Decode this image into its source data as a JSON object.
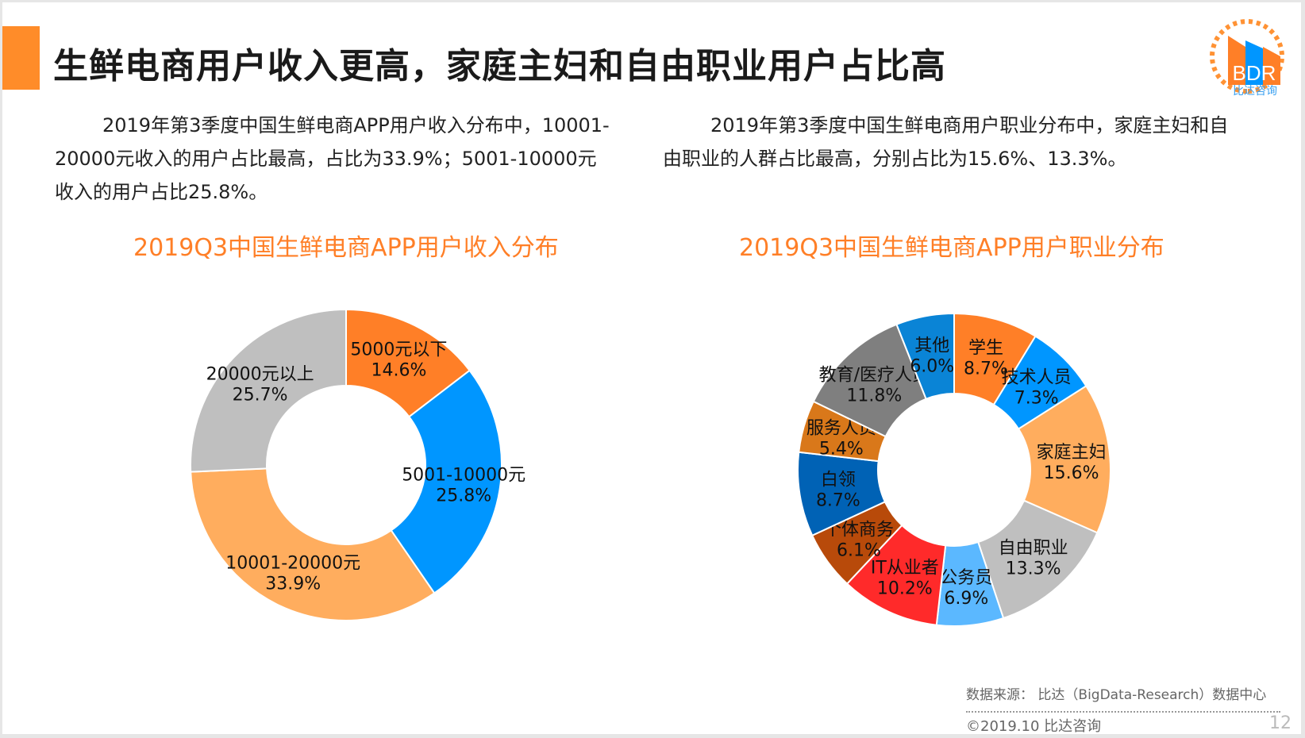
{
  "header": {
    "title": "生鲜电商用户收入更高，家庭主妇和自由职业用户占比高"
  },
  "logo": {
    "text": "BDR",
    "subtext": "比达咨询"
  },
  "descriptions": [
    "2019年第3季度中国生鲜电商APP用户收入分布中，10001-20000元收入的用户占比最高，占比为33.9%；5001-10000元收入的用户占比25.8%。",
    "2019年第3季度中国生鲜电商用户职业分布中，家庭主妇和自由职业的人群占比最高，分别占比为15.6%、13.3%。"
  ],
  "chart_data": [
    {
      "type": "pie",
      "donut": true,
      "title": "2019Q3中国生鲜电商APP用户收入分布",
      "categories": [
        "5000元以下",
        "5001-10000元",
        "10001-20000元",
        "20000元以上"
      ],
      "values": [
        14.6,
        25.8,
        33.9,
        25.7
      ],
      "labels": [
        "14.6%",
        "25.8%",
        "33.9%",
        "25.7%"
      ],
      "colors": [
        "#FF7F27",
        "#0096FF",
        "#FFAD5E",
        "#BFBFBF"
      ],
      "unit": "%"
    },
    {
      "type": "pie",
      "donut": true,
      "title": "2019Q3中国生鲜电商APP用户职业分布",
      "categories": [
        "学生",
        "技术人员",
        "家庭主妇",
        "自由职业",
        "公务员",
        "IT从业者",
        "个体商务",
        "白领",
        "服务人员",
        "教育/医疗人员",
        "其他"
      ],
      "values": [
        8.7,
        7.3,
        15.6,
        13.3,
        6.9,
        10.2,
        6.1,
        8.7,
        5.4,
        11.8,
        6.0
      ],
      "labels": [
        "8.7%",
        "7.3%",
        "15.6%",
        "13.3%",
        "6.9%",
        "10.2%",
        "6.1%",
        "8.7%",
        "5.4%",
        "11.8%",
        "6.0%"
      ],
      "colors": [
        "#FF7F27",
        "#0096FF",
        "#FFAD5E",
        "#BFBFBF",
        "#5BB8FF",
        "#FF2A2A",
        "#B84A0A",
        "#0062B5",
        "#D9781A",
        "#7F7F7F",
        "#0A84D6"
      ],
      "unit": "%"
    }
  ],
  "footer": {
    "source": "数据来源： 比达（BigData-Research）数据中心",
    "copyright": "©2019.10  比达咨询",
    "page_number": "12"
  }
}
